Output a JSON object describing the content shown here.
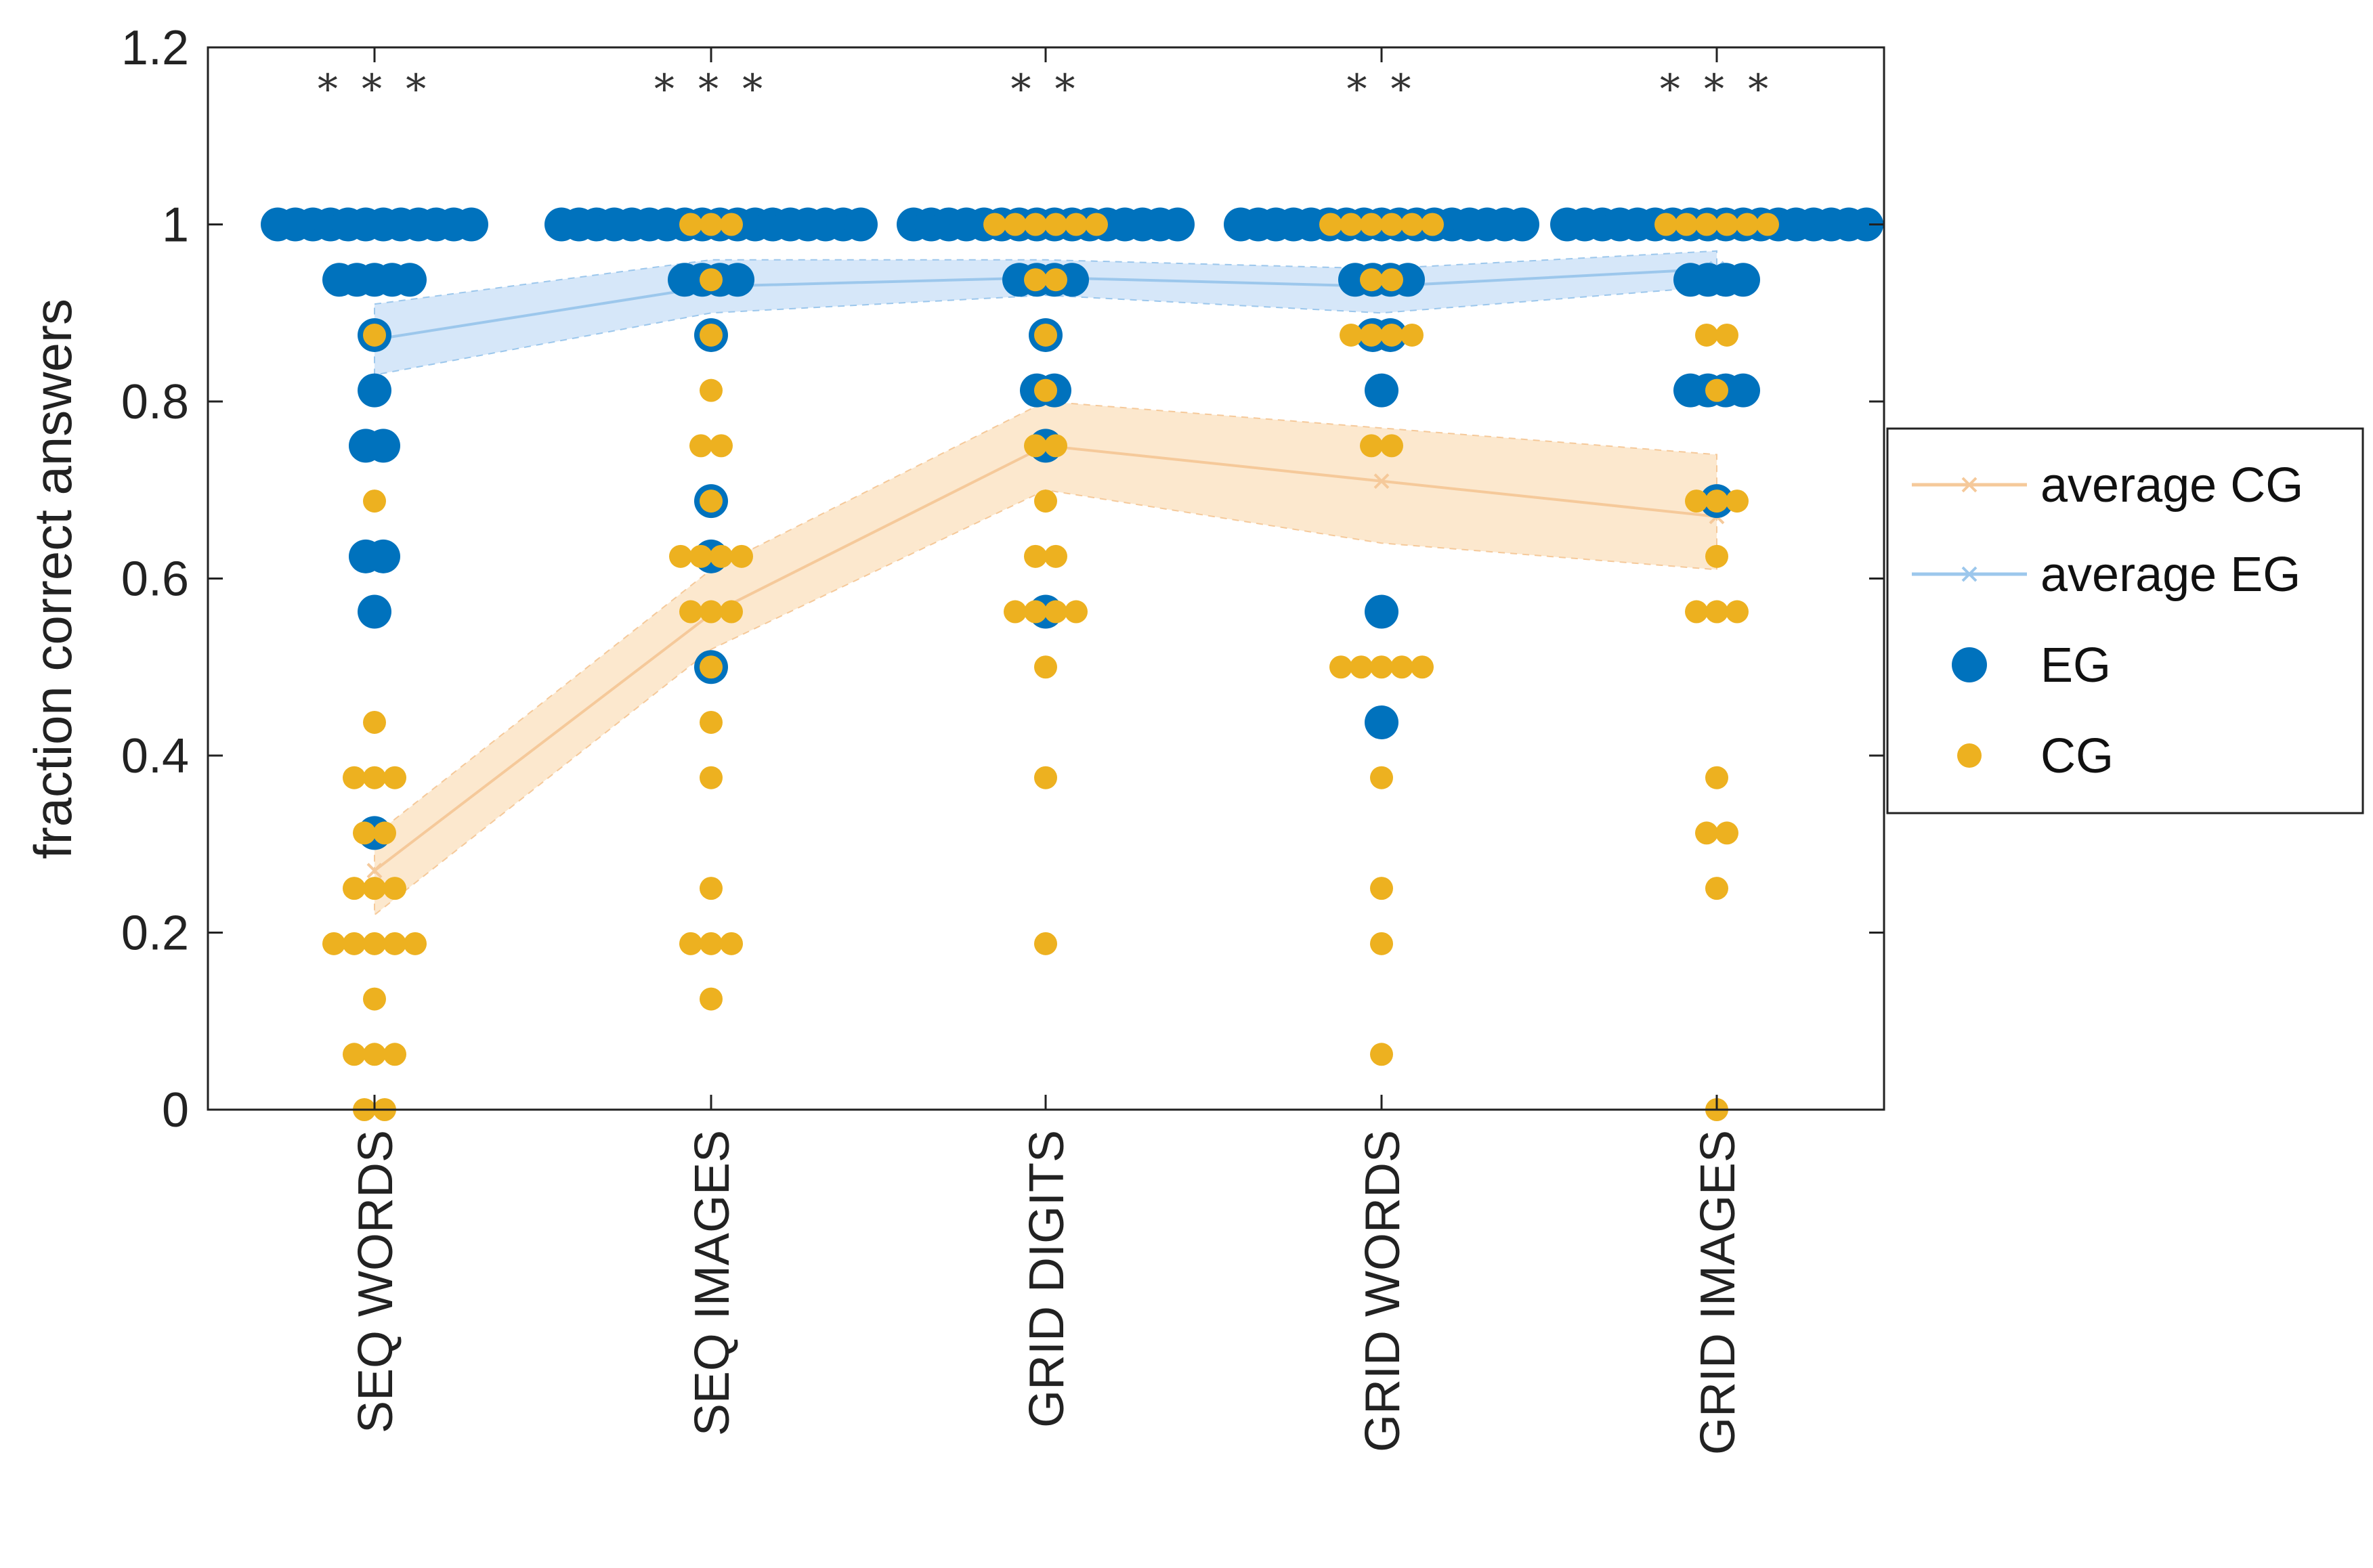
{
  "chart_data": {
    "type": "scatter",
    "title": "",
    "xlabel": "",
    "ylabel": "fraction correct answers",
    "ylim": [
      0,
      1.2
    ],
    "yticks": [
      "0",
      "0.2",
      "0.4",
      "0.6",
      "0.8",
      "1",
      "1.2"
    ],
    "categories": [
      "SEQ WORDS",
      "SEQ IMAGES",
      "GRID DIGITS",
      "GRID WORDS",
      "GRID IMAGES"
    ],
    "significance": [
      "* * *",
      "* * *",
      "* *",
      "* *",
      "* * *"
    ],
    "grid": false,
    "legend_position": "right-outside",
    "legend": [
      "average CG",
      "average EG",
      "EG",
      "CG"
    ],
    "colors": {
      "EG": "#0072BD",
      "CG": "#EDB120",
      "avg_EG": "#9CC7EC",
      "avg_CG": "#F5C99A",
      "band_EG": "#CFE3F8",
      "band_CG": "#FCE4C6"
    },
    "series": [
      {
        "name": "average CG",
        "values": [
          0.27,
          0.56,
          0.75,
          0.71,
          0.67
        ],
        "band_lower": [
          0.22,
          0.52,
          0.7,
          0.64,
          0.61
        ],
        "band_upper": [
          0.31,
          0.61,
          0.8,
          0.77,
          0.74
        ]
      },
      {
        "name": "average EG",
        "values": [
          0.87,
          0.93,
          0.94,
          0.93,
          0.95
        ],
        "band_lower": [
          0.83,
          0.9,
          0.92,
          0.9,
          0.93
        ],
        "band_upper": [
          0.91,
          0.96,
          0.96,
          0.95,
          0.97
        ]
      },
      {
        "name": "EG",
        "points": [
          [
            {
              "y": 1,
              "n": 12
            },
            {
              "y": 0.9375,
              "n": 5
            },
            {
              "y": 0.875,
              "n": 1
            },
            {
              "y": 0.8125,
              "n": 1
            },
            {
              "y": 0.75,
              "n": 2
            },
            {
              "y": 0.625,
              "n": 2
            },
            {
              "y": 0.5625,
              "n": 1
            },
            {
              "y": 0.3125,
              "n": 1
            }
          ],
          [
            {
              "y": 1,
              "n": 18
            },
            {
              "y": 0.9375,
              "n": 4
            },
            {
              "y": 0.875,
              "n": 1
            },
            {
              "y": 0.6875,
              "n": 1
            },
            {
              "y": 0.625,
              "n": 1
            },
            {
              "y": 0.5,
              "n": 1
            }
          ],
          [
            {
              "y": 1,
              "n": 16
            },
            {
              "y": 0.9375,
              "n": 4
            },
            {
              "y": 0.875,
              "n": 1
            },
            {
              "y": 0.8125,
              "n": 2
            },
            {
              "y": 0.75,
              "n": 1
            },
            {
              "y": 0.5625,
              "n": 1
            }
          ],
          [
            {
              "y": 1,
              "n": 17
            },
            {
              "y": 0.9375,
              "n": 4
            },
            {
              "y": 0.875,
              "n": 2
            },
            {
              "y": 0.8125,
              "n": 1
            },
            {
              "y": 0.5625,
              "n": 1
            },
            {
              "y": 0.4375,
              "n": 1
            }
          ],
          [
            {
              "y": 1,
              "n": 18
            },
            {
              "y": 0.9375,
              "n": 4
            },
            {
              "y": 0.8125,
              "n": 4
            },
            {
              "y": 0.6875,
              "n": 1
            }
          ]
        ]
      },
      {
        "name": "CG",
        "points": [
          [
            {
              "y": 0.875,
              "n": 1
            },
            {
              "y": 0.6875,
              "n": 1
            },
            {
              "y": 0.4375,
              "n": 1
            },
            {
              "y": 0.375,
              "n": 3
            },
            {
              "y": 0.3125,
              "n": 2
            },
            {
              "y": 0.25,
              "n": 3
            },
            {
              "y": 0.1875,
              "n": 5
            },
            {
              "y": 0.125,
              "n": 1
            },
            {
              "y": 0.0625,
              "n": 3
            },
            {
              "y": 0,
              "n": 2
            }
          ],
          [
            {
              "y": 1,
              "n": 3
            },
            {
              "y": 0.9375,
              "n": 1
            },
            {
              "y": 0.875,
              "n": 1
            },
            {
              "y": 0.8125,
              "n": 1
            },
            {
              "y": 0.75,
              "n": 2
            },
            {
              "y": 0.6875,
              "n": 1
            },
            {
              "y": 0.625,
              "n": 4
            },
            {
              "y": 0.5625,
              "n": 3
            },
            {
              "y": 0.5,
              "n": 1
            },
            {
              "y": 0.4375,
              "n": 1
            },
            {
              "y": 0.375,
              "n": 1
            },
            {
              "y": 0.25,
              "n": 1
            },
            {
              "y": 0.1875,
              "n": 3
            },
            {
              "y": 0.125,
              "n": 1
            }
          ],
          [
            {
              "y": 1,
              "n": 6
            },
            {
              "y": 0.9375,
              "n": 2
            },
            {
              "y": 0.875,
              "n": 1
            },
            {
              "y": 0.8125,
              "n": 1
            },
            {
              "y": 0.75,
              "n": 2
            },
            {
              "y": 0.6875,
              "n": 1
            },
            {
              "y": 0.625,
              "n": 2
            },
            {
              "y": 0.5625,
              "n": 4
            },
            {
              "y": 0.5,
              "n": 1
            },
            {
              "y": 0.375,
              "n": 1
            },
            {
              "y": 0.1875,
              "n": 1
            }
          ],
          [
            {
              "y": 1,
              "n": 6
            },
            {
              "y": 0.9375,
              "n": 2
            },
            {
              "y": 0.875,
              "n": 4
            },
            {
              "y": 0.75,
              "n": 2
            },
            {
              "y": 0.5,
              "n": 5
            },
            {
              "y": 0.375,
              "n": 1
            },
            {
              "y": 0.25,
              "n": 1
            },
            {
              "y": 0.1875,
              "n": 1
            },
            {
              "y": 0.0625,
              "n": 1
            }
          ],
          [
            {
              "y": 1,
              "n": 6
            },
            {
              "y": 0.875,
              "n": 2
            },
            {
              "y": 0.8125,
              "n": 1
            },
            {
              "y": 0.6875,
              "n": 3
            },
            {
              "y": 0.625,
              "n": 1
            },
            {
              "y": 0.5625,
              "n": 3
            },
            {
              "y": 0.375,
              "n": 1
            },
            {
              "y": 0.3125,
              "n": 2
            },
            {
              "y": 0.25,
              "n": 1
            },
            {
              "y": 0,
              "n": 1
            }
          ]
        ]
      }
    ]
  }
}
